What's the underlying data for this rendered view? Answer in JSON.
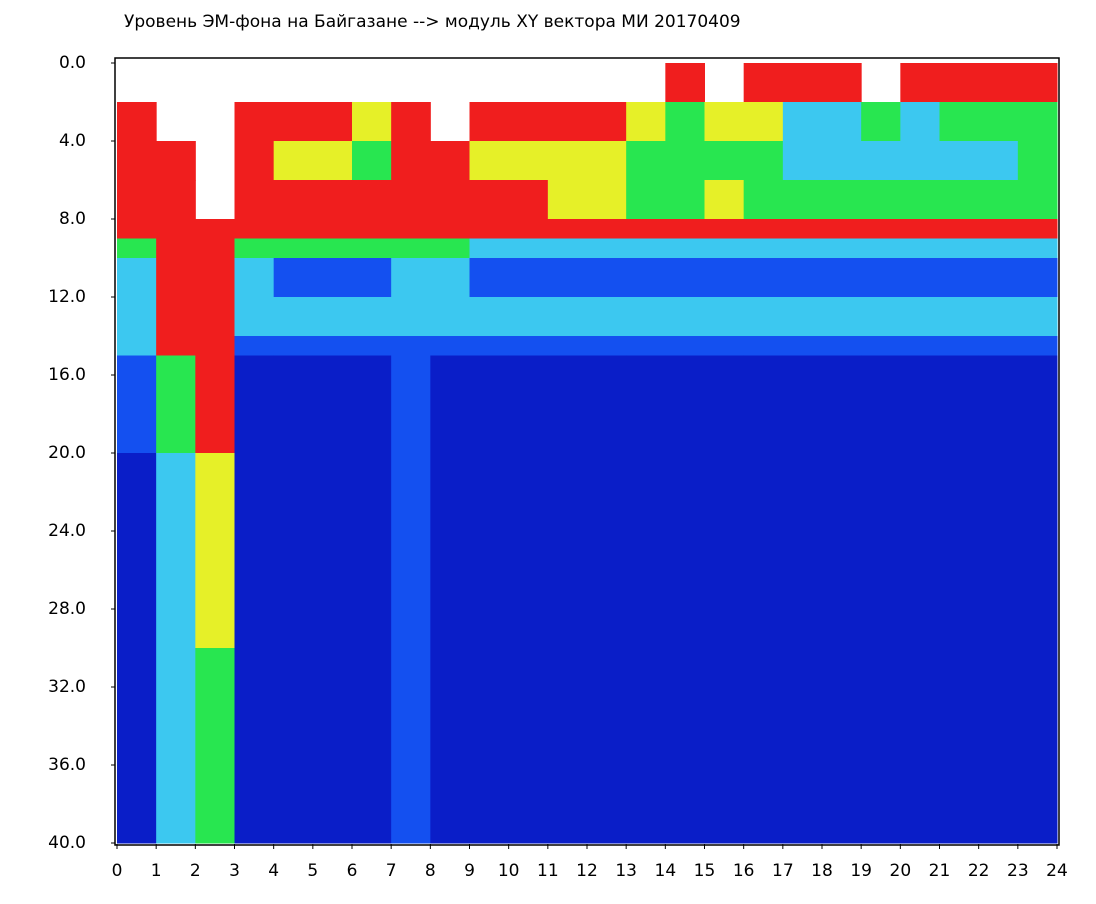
{
  "chart_data": {
    "type": "heatmap",
    "title": "Уровень ЭМ-фона на Байгазане  --> модуль XY вектора МИ  20170409",
    "xlim": [
      0,
      24
    ],
    "xticks": [
      0,
      1,
      2,
      3,
      4,
      5,
      6,
      7,
      8,
      9,
      10,
      11,
      12,
      13,
      14,
      15,
      16,
      17,
      18,
      19,
      20,
      21,
      22,
      23,
      24
    ],
    "ylim": [
      0,
      40
    ],
    "yticks": [
      {
        "value": 0,
        "label": "0.0"
      },
      {
        "value": 4,
        "label": "4.0"
      },
      {
        "value": 8,
        "label": "8.0"
      },
      {
        "value": 12,
        "label": "12.0"
      },
      {
        "value": 16,
        "label": "16.0"
      },
      {
        "value": 20,
        "label": "20.0"
      },
      {
        "value": 24,
        "label": "24.0"
      },
      {
        "value": 28,
        "label": "28.0"
      },
      {
        "value": 32,
        "label": "32.0"
      },
      {
        "value": 36,
        "label": "36.0"
      },
      {
        "value": 40,
        "label": "40.0"
      }
    ],
    "y_inverted": true,
    "y_bins": [
      0,
      2,
      4,
      6,
      8,
      9,
      10,
      12,
      14,
      15,
      20,
      30,
      40
    ],
    "colormap": [
      "#0a1ec8",
      "#1450f0",
      "#3cc8f0",
      "#28e650",
      "#e6f028",
      "#f01e1e"
    ],
    "values": [
      [
        null,
        null,
        null,
        null,
        null,
        null,
        null,
        null,
        null,
        null,
        null,
        null,
        null,
        null,
        6,
        null,
        6,
        6,
        6,
        null,
        6,
        6,
        6,
        6
      ],
      [
        6,
        null,
        null,
        6,
        6,
        6,
        5,
        6,
        null,
        6,
        6,
        6,
        6,
        5,
        4,
        5,
        5,
        3,
        3,
        4,
        3,
        4,
        4,
        4
      ],
      [
        6,
        6,
        null,
        6,
        5,
        5,
        4,
        6,
        6,
        5,
        5,
        5,
        5,
        4,
        4,
        4,
        4,
        3,
        3,
        3,
        3,
        3,
        3,
        4
      ],
      [
        6,
        6,
        null,
        6,
        6,
        6,
        6,
        6,
        6,
        6,
        6,
        5,
        5,
        4,
        4,
        5,
        4,
        4,
        4,
        4,
        4,
        4,
        4,
        4
      ],
      [
        6,
        6,
        6,
        6,
        6,
        6,
        6,
        6,
        6,
        6,
        6,
        6,
        6,
        6,
        6,
        6,
        6,
        6,
        6,
        6,
        6,
        6,
        6,
        6
      ],
      [
        4,
        6,
        6,
        4,
        4,
        4,
        4,
        4,
        4,
        3,
        3,
        3,
        3,
        3,
        3,
        3,
        3,
        3,
        3,
        3,
        3,
        3,
        3,
        3
      ],
      [
        3,
        6,
        6,
        3,
        2,
        2,
        2,
        3,
        3,
        2,
        2,
        2,
        2,
        2,
        2,
        2,
        2,
        2,
        2,
        2,
        2,
        2,
        2,
        2
      ],
      [
        3,
        6,
        6,
        3,
        3,
        3,
        3,
        3,
        3,
        3,
        3,
        3,
        3,
        3,
        3,
        3,
        3,
        3,
        3,
        3,
        3,
        3,
        3,
        3
      ],
      [
        3,
        6,
        6,
        2,
        2,
        2,
        2,
        2,
        2,
        2,
        2,
        2,
        2,
        2,
        2,
        2,
        2,
        2,
        2,
        2,
        2,
        2,
        2,
        2
      ],
      [
        2,
        4,
        6,
        1,
        1,
        1,
        1,
        2,
        1,
        1,
        1,
        1,
        1,
        1,
        1,
        1,
        1,
        1,
        1,
        1,
        1,
        1,
        1,
        1
      ],
      [
        1,
        3,
        5,
        1,
        1,
        1,
        1,
        2,
        1,
        1,
        1,
        1,
        1,
        1,
        1,
        1,
        1,
        1,
        1,
        1,
        1,
        1,
        1,
        1
      ],
      [
        1,
        3,
        4,
        1,
        1,
        1,
        1,
        2,
        1,
        1,
        1,
        1,
        1,
        1,
        1,
        1,
        1,
        1,
        1,
        1,
        1,
        1,
        1,
        1
      ]
    ]
  }
}
